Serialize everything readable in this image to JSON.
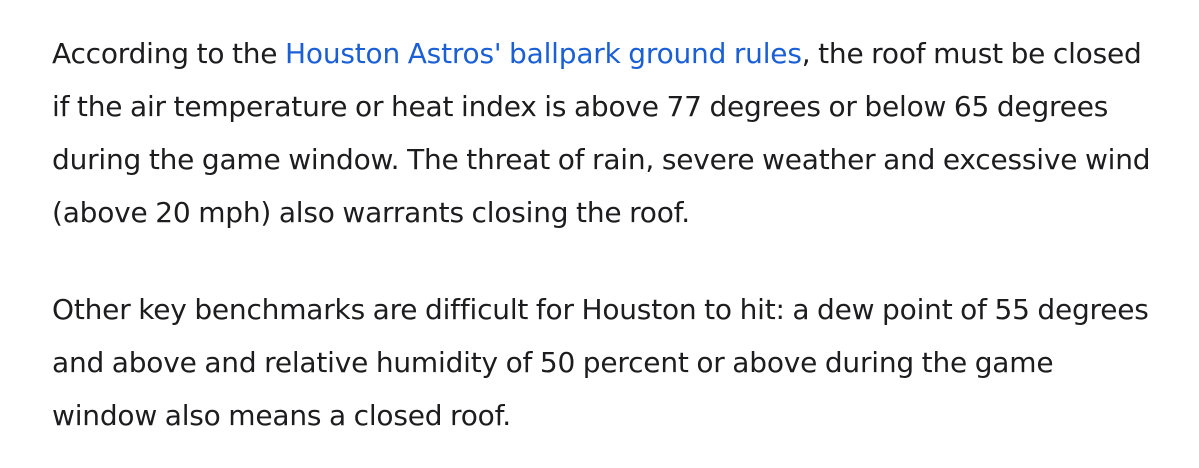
{
  "article": {
    "paragraph_1": {
      "before_link": "According to the ",
      "link_text": "Houston Astros' ballpark ground rules",
      "after_link": ", the roof must be closed if the air temperature or heat index is above 77 degrees or below 65 degrees during the game window. The threat of rain, severe weather and excessive wind (above 20 mph) also warrants closing the roof."
    },
    "paragraph_2": {
      "text": "Other key benchmarks are difficult for Houston to hit: a dew point of 55 degrees and above and relative humidity of 50 percent or above during the game window also means a closed roof."
    }
  },
  "colors": {
    "text": "#1d1d1f",
    "link": "#1a5fd6",
    "background": "#ffffff"
  }
}
